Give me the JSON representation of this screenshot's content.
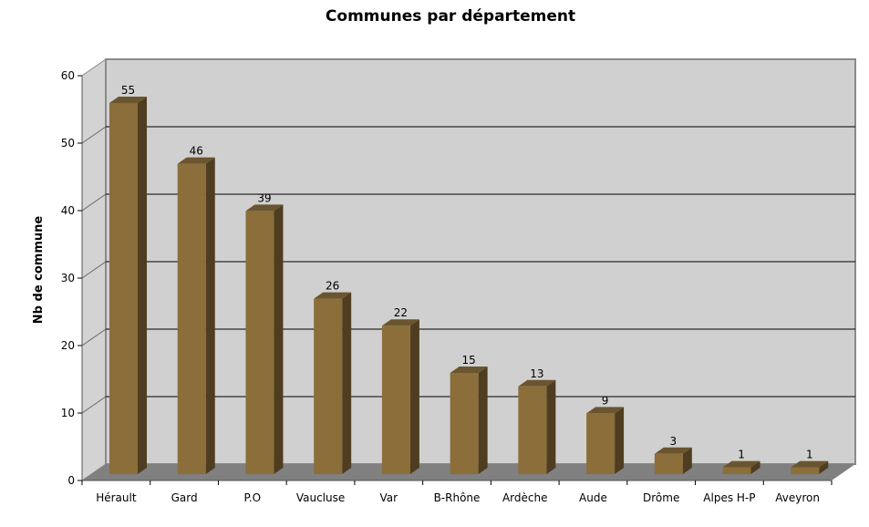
{
  "chart_data": {
    "type": "bar",
    "title": "Communes par département",
    "xlabel": "",
    "ylabel": "Nb de commune",
    "ylim": [
      0,
      60
    ],
    "yticks": [
      0,
      10,
      20,
      30,
      40,
      50,
      60
    ],
    "grid": true,
    "style": "3d",
    "categories": [
      "Hérault",
      "Gard",
      "P.O",
      "Vaucluse",
      "Var",
      "B-Rhône",
      "Ardèche",
      "Aude",
      "Drôme",
      "Alpes H-P",
      "Aveyron"
    ],
    "values": [
      55,
      46,
      39,
      26,
      22,
      15,
      13,
      9,
      3,
      1,
      1
    ],
    "data_labels": [
      "55",
      "46",
      "39",
      "26",
      "22",
      "15",
      "13",
      "9",
      "3",
      "1",
      "1"
    ],
    "colors": {
      "bar_front": "#8b6e3a",
      "bar_side": "#4e3d20",
      "bar_top": "#6b5530",
      "back_wall": "#d0d0d0",
      "side_wall": "#d3d3d3",
      "floor": "#808080"
    }
  }
}
